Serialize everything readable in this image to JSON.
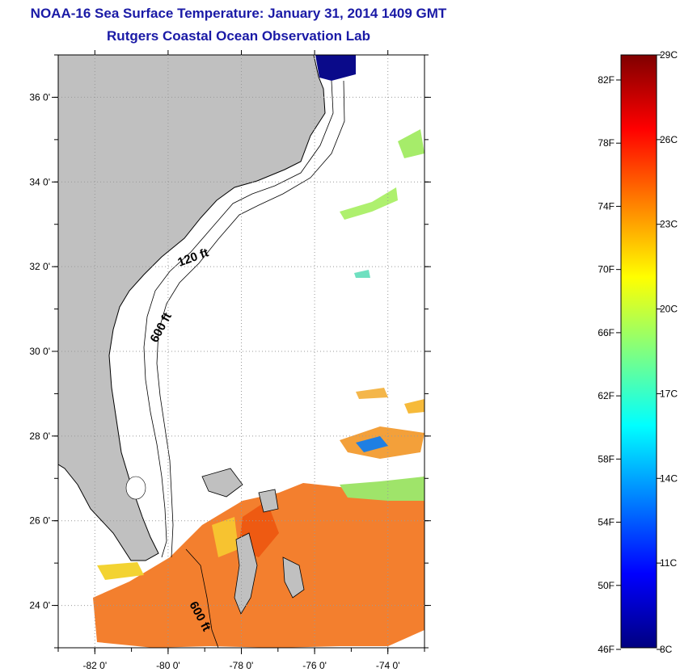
{
  "title": {
    "line1": "NOAA-16 Sea Surface Temperature:  January 31, 2014 1409 GMT",
    "line2": "Rutgers Coastal Ocean Observation Lab"
  },
  "map": {
    "lon_ticks": [
      {
        "value": -82,
        "label": "-82 0'"
      },
      {
        "value": -80,
        "label": "-80 0'"
      },
      {
        "value": -78,
        "label": "-78 0'"
      },
      {
        "value": -76,
        "label": "-76 0'"
      },
      {
        "value": -74,
        "label": "-74 0'"
      }
    ],
    "lat_ticks": [
      {
        "value": 36,
        "label": "36 0'"
      },
      {
        "value": 34,
        "label": "34 0'"
      },
      {
        "value": 32,
        "label": "32 0'"
      },
      {
        "value": 30,
        "label": "30 0'"
      },
      {
        "value": 28,
        "label": "28 0'"
      },
      {
        "value": 26,
        "label": "26 0'"
      },
      {
        "value": 24,
        "label": "24 0'"
      }
    ],
    "lon_range": [
      -83,
      -73
    ],
    "lat_range": [
      23,
      37
    ],
    "grid": true,
    "land_color": "#c0c0c0",
    "contour_labels": [
      "120 ft",
      "600 ft",
      "600 ft"
    ]
  },
  "colorbar": {
    "fahrenheit_labels": [
      "82F",
      "78F",
      "74F",
      "70F",
      "66F",
      "62F",
      "58F",
      "54F",
      "50F",
      "46F"
    ],
    "celsius_labels": [
      "29C",
      "26C",
      "23C",
      "20C",
      "17C",
      "14C",
      "11C",
      "8C"
    ],
    "colors": [
      "#800000",
      "#ff0000",
      "#ff8000",
      "#ffff00",
      "#80ff80",
      "#00ffff",
      "#0080ff",
      "#0000ff",
      "#000080"
    ]
  }
}
